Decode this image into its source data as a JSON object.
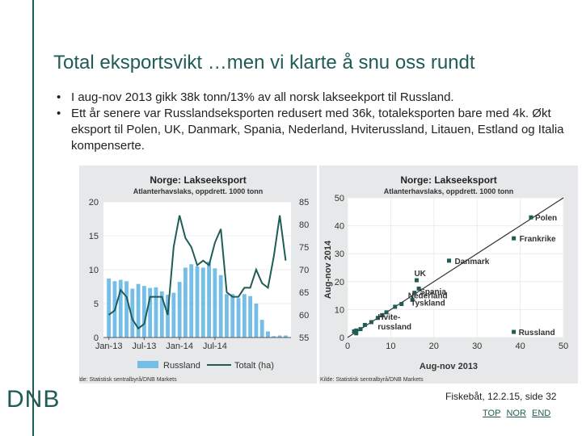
{
  "slide": {
    "title": "Total eksportsvikt …men vi klarte å snu oss rundt",
    "bullets": [
      "I aug-nov 2013 gikk 38k tonn/13% av all norsk lakseekport til Russland.",
      "Ett år senere var Russlandseksporten redusert med 36k, totaleksporten bare med 4k. Økt eksport til Polen, UK, Danmark, Spania, Nederland, Hviterussland, Litauen, Estland og Italia kompenserte."
    ],
    "logo": "DNB",
    "footer": "Fiskebåt, 12.2.15, side 32",
    "links": [
      "TOP",
      "NOR",
      "END"
    ]
  },
  "colors": {
    "brand": "#1f5c55",
    "bars": "#74bee8",
    "line": "#1f5c55",
    "panel": "#e7e8e9"
  },
  "chart_data": [
    {
      "type": "bar",
      "title": "Norge: Lakseeksport",
      "subtitle": "Atlanterhavslaks, oppdrett. 1000 tonn",
      "x_ticks": [
        "Jan-13",
        "Jul-13",
        "Jan-14",
        "Jul-14"
      ],
      "ylim": [
        0,
        20
      ],
      "y2lim": [
        55,
        85
      ],
      "y_ticks": [
        0,
        5,
        10,
        15,
        20
      ],
      "y2_ticks": [
        55,
        60,
        65,
        70,
        75,
        80,
        85
      ],
      "source": "Kilde: Statistisk sentralbyrå/DNB Markets",
      "series": [
        {
          "name": "Russland",
          "axis": "left",
          "type": "bar",
          "values": [
            8.7,
            8.3,
            8.5,
            8.3,
            7.2,
            7.9,
            7.6,
            7.3,
            7.4,
            6.8,
            6.3,
            6.6,
            8.2,
            10.3,
            10.8,
            10.5,
            10.3,
            11.2,
            10.2,
            9.2,
            6.4,
            6.4,
            5.8,
            6.4,
            6.1,
            5.0,
            2.6,
            0.9,
            0.2,
            0.3,
            0.3
          ]
        },
        {
          "name": "Totalt (ha)",
          "axis": "right",
          "type": "line",
          "values": [
            60,
            61,
            65.5,
            64,
            59,
            57,
            58,
            64,
            64,
            64,
            60,
            75,
            82,
            77,
            75,
            71,
            72,
            71,
            76,
            79,
            65,
            64,
            64,
            66,
            66,
            70,
            67,
            66,
            73,
            82,
            72
          ]
        }
      ]
    },
    {
      "type": "scatter",
      "title": "Norge: Lakseeksport",
      "subtitle": "Atlanterhavslaks, oppdrett. 1000 tonn",
      "xlabel": "Aug-nov 2013",
      "ylabel": "Aug-nov 2014",
      "xlim": [
        0,
        50
      ],
      "ylim": [
        0,
        50
      ],
      "x_ticks": [
        0,
        10,
        20,
        30,
        40,
        50
      ],
      "y_ticks": [
        0,
        10,
        20,
        30,
        40,
        50
      ],
      "source": "Kilde: Statistisk sentralbyrå/DNB Markets",
      "points": [
        {
          "label": "Polen",
          "x": 42.5,
          "y": 43
        },
        {
          "label": "Frankrike",
          "x": 38.5,
          "y": 35.5
        },
        {
          "label": "Danmark",
          "x": 23.5,
          "y": 27.5
        },
        {
          "label": "UK",
          "x": 16,
          "y": 20.5
        },
        {
          "label": "Spania",
          "x": 16.5,
          "y": 17.5
        },
        {
          "label": "Nederland",
          "x": 15.5,
          "y": 16
        },
        {
          "label": "Tyskland",
          "x": 15,
          "y": 13.5
        },
        {
          "label": "",
          "x": 12.5,
          "y": 12
        },
        {
          "label": "",
          "x": 11,
          "y": 11
        },
        {
          "label": "",
          "x": 9,
          "y": 9
        },
        {
          "label": "",
          "x": 8,
          "y": 8
        },
        {
          "label": "",
          "x": 7,
          "y": 7
        },
        {
          "label": "Hvite-russland",
          "x": 5.5,
          "y": 5.5
        },
        {
          "label": "",
          "x": 4,
          "y": 4.5
        },
        {
          "label": "",
          "x": 3,
          "y": 3
        },
        {
          "label": "",
          "x": 2,
          "y": 2.5
        },
        {
          "label": "",
          "x": 2,
          "y": 1.5
        },
        {
          "label": "",
          "x": 1.5,
          "y": 2.2
        },
        {
          "label": "Russland",
          "x": 38.5,
          "y": 2
        }
      ]
    }
  ]
}
